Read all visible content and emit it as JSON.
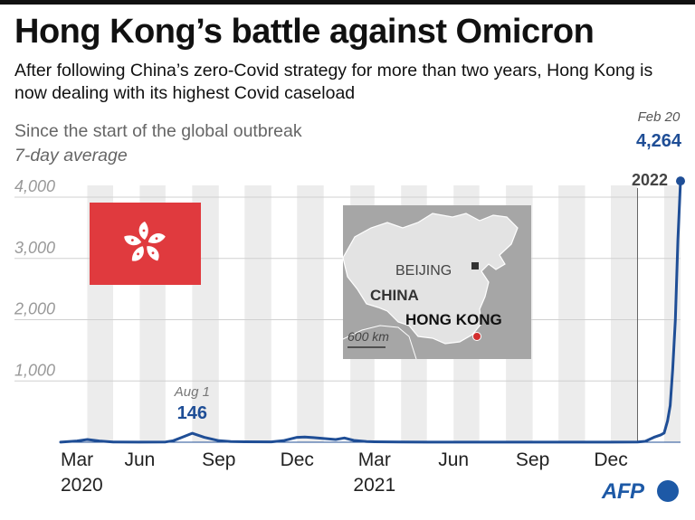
{
  "header": {
    "title": "Hong Kong’s battle against Omicron",
    "subtitle": "After following China’s zero-Covid strategy for more than two years, Hong Kong is now dealing with its highest Covid caseload",
    "note_line1": "Since the start of the global outbreak",
    "note_line2": "7-day average"
  },
  "chart_data": {
    "type": "line",
    "title": "Hong Kong’s battle against Omicron",
    "ylabel": "",
    "xlabel": "",
    "ylim": [
      0,
      4400
    ],
    "yticks": [
      1000,
      2000,
      3000,
      4000
    ],
    "ytick_labels": [
      "1,000",
      "2,000",
      "3,000",
      "4,000"
    ],
    "xticks": [
      {
        "date": "2020-03-01",
        "label": "Mar",
        "sub": "2020"
      },
      {
        "date": "2020-06-01",
        "label": "Jun",
        "sub": ""
      },
      {
        "date": "2020-09-01",
        "label": "Sep",
        "sub": ""
      },
      {
        "date": "2020-12-01",
        "label": "Dec",
        "sub": ""
      },
      {
        "date": "2021-03-01",
        "label": "Mar",
        "sub": "2021"
      },
      {
        "date": "2021-06-01",
        "label": "Jun",
        "sub": ""
      },
      {
        "date": "2021-09-01",
        "label": "Sep",
        "sub": ""
      },
      {
        "date": "2021-12-01",
        "label": "Dec",
        "sub": ""
      }
    ],
    "x_range": [
      "2020-03-01",
      "2022-02-20"
    ],
    "grid": "alternating month bands",
    "year_marker": {
      "date": "2022-01-01",
      "label": "2022"
    },
    "series": [
      {
        "color": "#1f4e96",
        "x": [
          "2020-03-01",
          "2020-03-20",
          "2020-04-01",
          "2020-04-15",
          "2020-05-01",
          "2020-06-01",
          "2020-07-01",
          "2020-07-10",
          "2020-07-20",
          "2020-08-01",
          "2020-08-15",
          "2020-09-01",
          "2020-09-15",
          "2020-10-01",
          "2020-11-01",
          "2020-11-15",
          "2020-12-01",
          "2020-12-10",
          "2020-12-20",
          "2021-01-01",
          "2021-01-15",
          "2021-01-25",
          "2021-02-05",
          "2021-02-20",
          "2021-03-01",
          "2021-04-01",
          "2021-05-01",
          "2021-06-01",
          "2021-07-01",
          "2021-08-01",
          "2021-09-01",
          "2021-10-01",
          "2021-11-01",
          "2021-12-01",
          "2022-01-01",
          "2022-01-10",
          "2022-01-20",
          "2022-01-28",
          "2022-02-01",
          "2022-02-05",
          "2022-02-08",
          "2022-02-11",
          "2022-02-14",
          "2022-02-17",
          "2022-02-20"
        ],
        "y": [
          2,
          20,
          45,
          20,
          5,
          2,
          4,
          25,
          80,
          146,
          80,
          25,
          10,
          8,
          6,
          25,
          80,
          85,
          75,
          60,
          45,
          70,
          30,
          10,
          8,
          5,
          2,
          2,
          2,
          2,
          2,
          1,
          1,
          2,
          3,
          15,
          80,
          120,
          150,
          350,
          600,
          1200,
          2000,
          3300,
          4264
        ]
      }
    ],
    "annotations": [
      {
        "date": "2020-08-01",
        "label": "Aug 1",
        "value_label": "146"
      },
      {
        "date": "2022-02-20",
        "label": "Feb 20",
        "value_label": "4,264"
      }
    ],
    "inset": {
      "flag": "Hong Kong flag",
      "map_labels": [
        "BEIJING",
        "CHINA",
        "HONG KONG",
        "600 km"
      ]
    }
  },
  "brand": {
    "logo": "AFP"
  }
}
